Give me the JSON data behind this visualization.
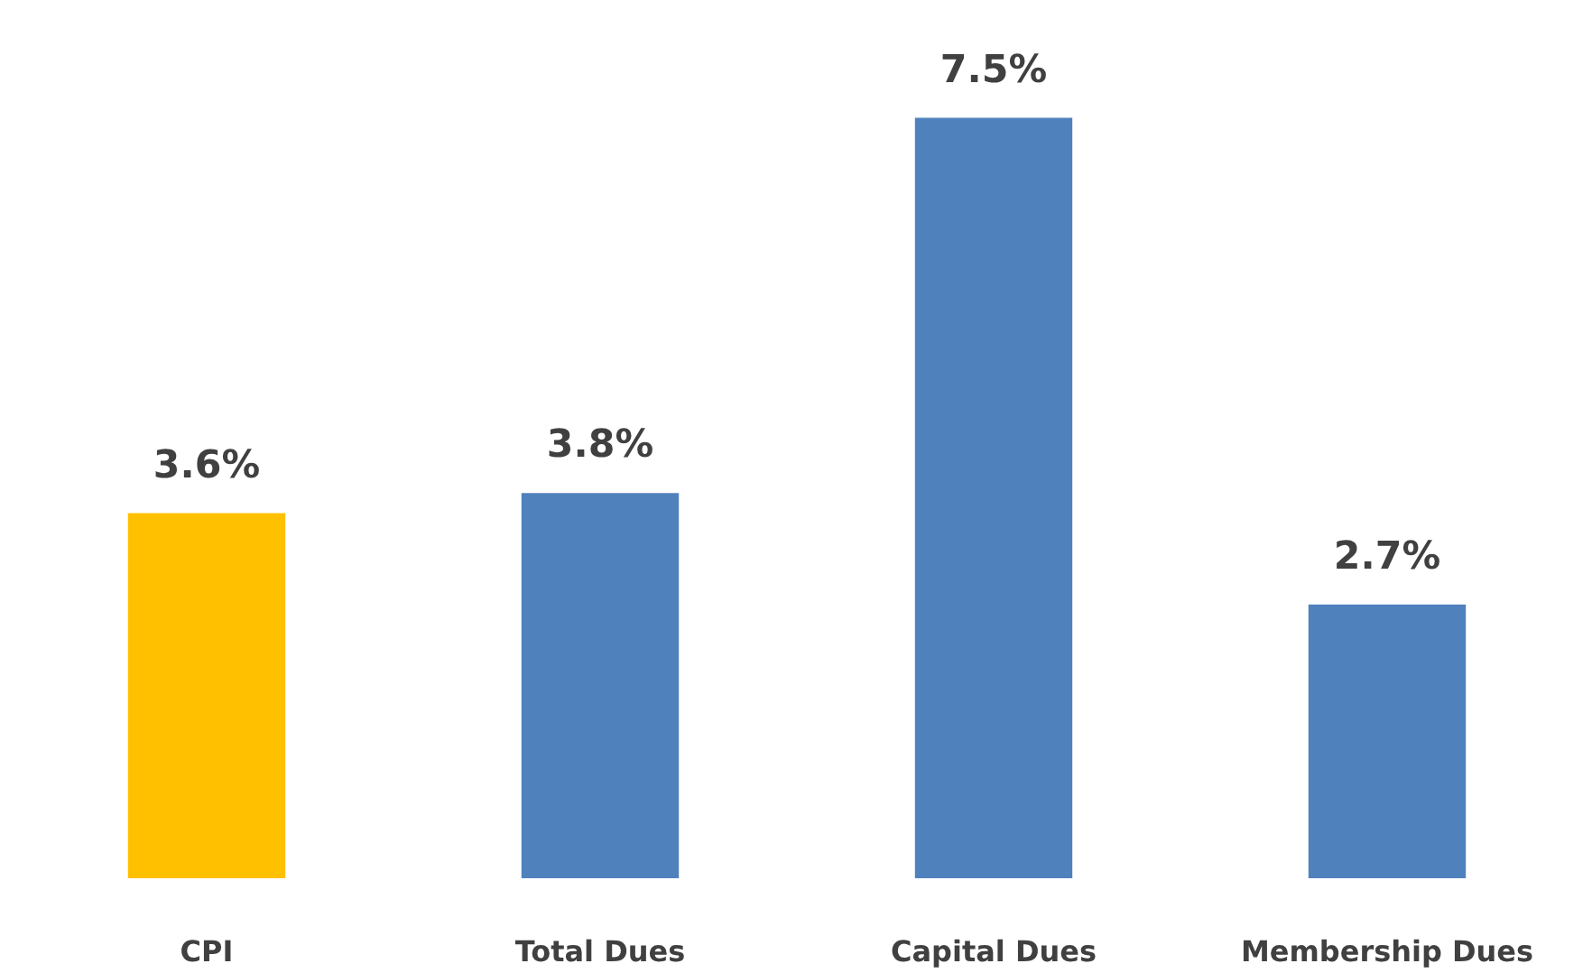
{
  "chart_data": {
    "type": "bar",
    "categories": [
      "CPI",
      "Total Dues",
      "Capital Dues",
      "Membership Dues"
    ],
    "values": [
      3.6,
      3.8,
      7.5,
      2.7
    ],
    "colors": [
      "#ffc000",
      "#4f81bd",
      "#4f81bd",
      "#4f81bd"
    ],
    "value_labels": [
      "3.6%",
      "3.8%",
      "7.5%",
      "2.7%"
    ],
    "grid": false
  }
}
